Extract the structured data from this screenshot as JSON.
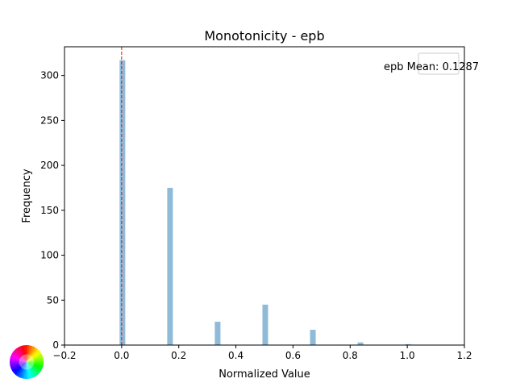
{
  "chart_data": {
    "type": "bar",
    "title": "Monotonicity - epb",
    "xlabel": "Normalized Value",
    "ylabel": "Frequency",
    "xlim": [
      -0.2,
      1.2
    ],
    "ylim": [
      0,
      332
    ],
    "x_ticks": [
      "-0.2",
      "0.0",
      "0.2",
      "0.4",
      "0.6",
      "0.8",
      "1.0",
      "1.2"
    ],
    "y_ticks": [
      "0",
      "50",
      "100",
      "150",
      "200",
      "250",
      "300"
    ],
    "bins": [
      {
        "x": 0.0,
        "value": 317
      },
      {
        "x": 0.1667,
        "value": 175
      },
      {
        "x": 0.3333,
        "value": 26
      },
      {
        "x": 0.5,
        "value": 45
      },
      {
        "x": 0.6667,
        "value": 17
      },
      {
        "x": 0.8333,
        "value": 3
      },
      {
        "x": 1.0,
        "value": 1
      }
    ],
    "bar_color": "#1f77b4",
    "mean_line": {
      "x": 0.1287,
      "color": "#ff0000",
      "style": "dashed"
    },
    "legend_text": "epb Mean: 0.1287",
    "legend_position": "top-right",
    "grid": false
  }
}
